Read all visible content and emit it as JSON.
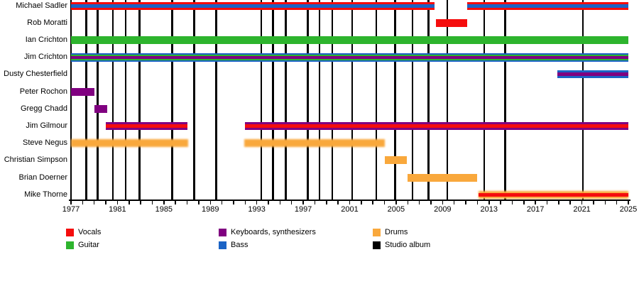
{
  "chart_data": {
    "type": "timeline",
    "description": "Band members timeline with instrument roles and studio album release markers",
    "x_axis": {
      "start": 1977,
      "end": 2025,
      "tick_every": 1,
      "label_every": 4,
      "labels": [
        "1977",
        "1981",
        "1985",
        "1989",
        "1993",
        "1997",
        "2001",
        "2005",
        "2009",
        "2013",
        "2017",
        "2021",
        "2025"
      ]
    },
    "colors": {
      "vocals": "#F50D0D",
      "guitar": "#2DB42D",
      "keyboards": "#800080",
      "bass": "#1B63C5",
      "drums": "#F9A83C",
      "album": "#000000"
    },
    "members": [
      {
        "name": "Michael Sadler",
        "roles": [
          "vocals",
          "bass"
        ],
        "segments": [
          [
            1977.0,
            2008.3
          ],
          [
            2011.1,
            2025.0
          ]
        ],
        "fuzzy": false
      },
      {
        "name": "Rob Moratti",
        "roles": [
          "vocals"
        ],
        "segments": [
          [
            2008.4,
            2011.1
          ]
        ],
        "fuzzy": false
      },
      {
        "name": "Ian Crichton",
        "roles": [
          "guitar"
        ],
        "segments": [
          [
            1977.0,
            2025.0
          ]
        ],
        "fuzzy": false
      },
      {
        "name": "Jim Crichton",
        "roles": [
          "bass",
          "guitar",
          "keyboards"
        ],
        "segments": [
          [
            1977.0,
            2025.0
          ]
        ],
        "fuzzy": false
      },
      {
        "name": "Dusty Chesterfield",
        "roles": [
          "bass",
          "keyboards"
        ],
        "segments": [
          [
            2018.9,
            2025.0
          ]
        ],
        "fuzzy": false
      },
      {
        "name": "Peter Rochon",
        "roles": [
          "keyboards"
        ],
        "segments": [
          [
            1977.0,
            1979.0
          ]
        ],
        "fuzzy": false
      },
      {
        "name": "Gregg Chadd",
        "roles": [
          "keyboards"
        ],
        "segments": [
          [
            1979.0,
            1980.1
          ]
        ],
        "fuzzy": false
      },
      {
        "name": "Jim Gilmour",
        "roles": [
          "keyboards",
          "vocals"
        ],
        "segments": [
          [
            1980.0,
            1987.0
          ],
          [
            1992.0,
            2025.0
          ]
        ],
        "fuzzy": false
      },
      {
        "name": "Steve Negus",
        "roles": [
          "drums"
        ],
        "segments": [
          [
            1977.0,
            1987.1
          ],
          [
            1991.9,
            2004.0
          ]
        ],
        "fuzzy": true
      },
      {
        "name": "Christian Simpson",
        "roles": [
          "drums"
        ],
        "segments": [
          [
            2004.0,
            2005.9
          ]
        ],
        "fuzzy": false
      },
      {
        "name": "Brian Doerner",
        "roles": [
          "drums"
        ],
        "segments": [
          [
            2006.0,
            2012.0
          ]
        ],
        "fuzzy": false
      },
      {
        "name": "Mike Thorne",
        "roles": [
          "drums",
          "vocals"
        ],
        "segments": [
          [
            2012.1,
            2025.0
          ]
        ],
        "fuzzy": true
      }
    ],
    "albums": [
      1978.3,
      1979.3,
      1980.6,
      1981.7,
      1982.9,
      1985.7,
      1987.6,
      1989.5,
      1993.4,
      1994.4,
      1995.5,
      1997.4,
      1998.4,
      1999.5,
      2001.2,
      2003.3,
      2004.9,
      2006.4,
      2007.8,
      2009.4,
      2012.6,
      2014.4,
      2021.1
    ],
    "legend": [
      {
        "label": "Vocals",
        "color": "vocals"
      },
      {
        "label": "Guitar",
        "color": "guitar"
      },
      {
        "label": "Keyboards, synthesizers",
        "color": "keyboards"
      },
      {
        "label": "Bass",
        "color": "bass"
      },
      {
        "label": "Drums",
        "color": "drums"
      },
      {
        "label": "Studio album",
        "color": "album"
      }
    ]
  }
}
